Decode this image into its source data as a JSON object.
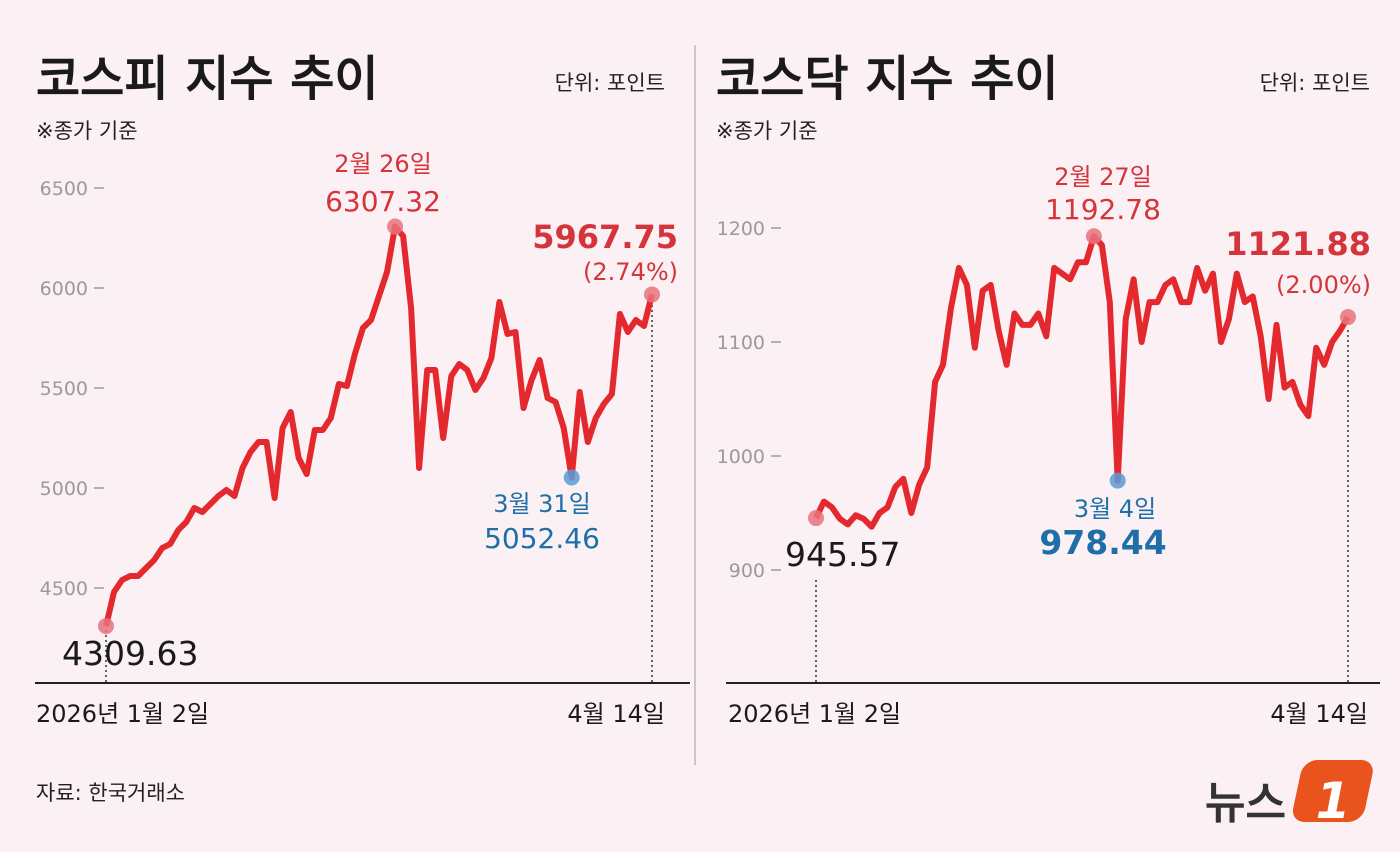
{
  "source": "자료: 한국거래소",
  "logo": {
    "text": "뉴스1",
    "color": "#e8531e"
  },
  "colors": {
    "line": "#e3282e",
    "max_marker": "#e8737b",
    "min_marker": "#5b9bd5",
    "background": "#fbf0f3"
  },
  "chart_data": [
    {
      "type": "line",
      "title": "코스피 지수 추이",
      "unit": "단위: 포인트",
      "note": "※종가 기준",
      "ylim": [
        4200,
        6550
      ],
      "yticks": [
        4500,
        5000,
        5500,
        6000,
        6500
      ],
      "ytick_labels": [
        "4500",
        "5000",
        "5500",
        "6000",
        "6500"
      ],
      "x_start_label": "2026년 1월 2일",
      "x_end_label": "4월 14일",
      "grid": false,
      "values": [
        4309.63,
        4480,
        4540,
        4560,
        4560,
        4600,
        4640,
        4700,
        4720,
        4790,
        4830,
        4900,
        4880,
        4920,
        4960,
        4990,
        4960,
        5100,
        5180,
        5230,
        5230,
        4950,
        5300,
        5380,
        5150,
        5070,
        5290,
        5290,
        5350,
        5520,
        5510,
        5670,
        5800,
        5840,
        5960,
        6080,
        6307.32,
        6260,
        5900,
        5100,
        5590,
        5590,
        5250,
        5560,
        5620,
        5590,
        5490,
        5550,
        5650,
        5930,
        5770,
        5780,
        5400,
        5540,
        5640,
        5450,
        5430,
        5300,
        5052.46,
        5480,
        5230,
        5350,
        5420,
        5470,
        5870,
        5780,
        5840,
        5810,
        5967.75
      ],
      "annotations": {
        "start": {
          "value": "4309.63"
        },
        "max": {
          "date": "2월 26일",
          "value": "6307.32"
        },
        "min": {
          "date": "3월 31일",
          "value": "5052.46"
        },
        "end": {
          "value": "5967.75",
          "change": "(2.74%)"
        }
      }
    },
    {
      "type": "line",
      "title": "코스닥 지수 추이",
      "unit": "단위: 포인트",
      "note": "※종가 기준",
      "ylim": [
        810,
        1230
      ],
      "yticks": [
        900,
        1000,
        1100,
        1200
      ],
      "ytick_labels": [
        "900",
        "1000",
        "1100",
        "1200"
      ],
      "x_start_label": "2026년 1월 2일",
      "x_end_label": "4월 14일",
      "grid": false,
      "values": [
        945.57,
        960,
        955,
        945,
        940,
        948,
        945,
        938,
        950,
        955,
        973,
        980,
        950,
        975,
        990,
        1065,
        1080,
        1130,
        1165,
        1150,
        1095,
        1145,
        1150,
        1110,
        1080,
        1125,
        1115,
        1115,
        1125,
        1105,
        1165,
        1160,
        1155,
        1170,
        1170,
        1192.78,
        1185,
        1135,
        978.44,
        1120,
        1155,
        1100,
        1135,
        1135,
        1150,
        1155,
        1135,
        1135,
        1165,
        1145,
        1160,
        1100,
        1120,
        1160,
        1135,
        1140,
        1105,
        1050,
        1115,
        1060,
        1065,
        1045,
        1035,
        1095,
        1080,
        1100,
        1110,
        1121.88
      ],
      "annotations": {
        "start": {
          "value": "945.57"
        },
        "max": {
          "date": "2월 27일",
          "value": "1192.78"
        },
        "min": {
          "date": "3월 4일",
          "value": "978.44"
        },
        "end": {
          "value": "1121.88",
          "change": "(2.00%)"
        }
      }
    }
  ]
}
